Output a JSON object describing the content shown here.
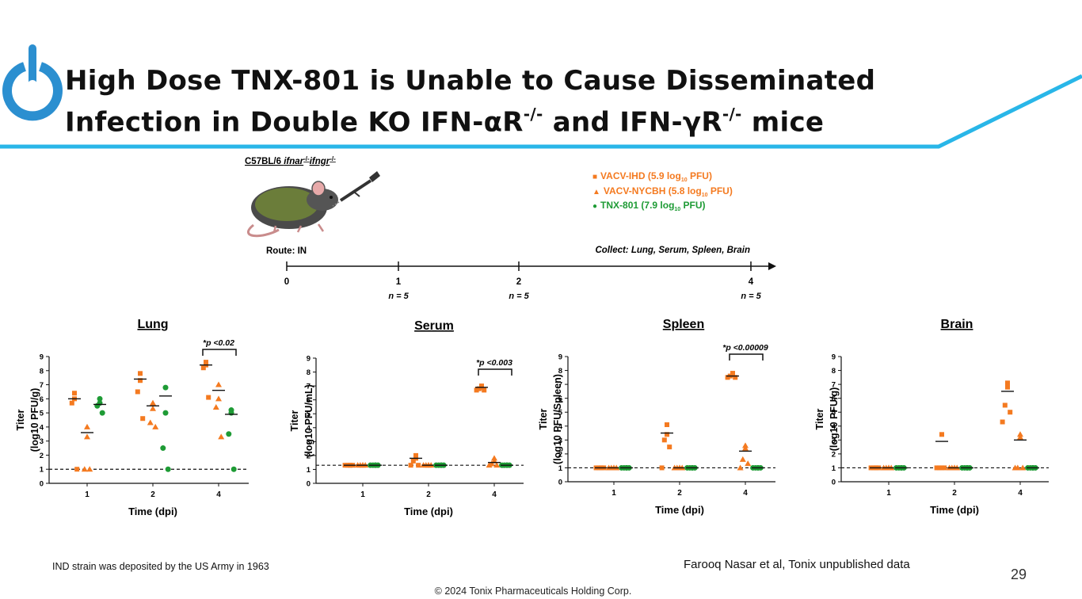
{
  "slide": {
    "title_line1": "High Dose TNX-801 is Unable to Cause Disseminated",
    "title_line2_a": "Infection in Double KO IFN-αR",
    "title_line2_sup1": "-/-",
    "title_line2_b": " and IFN-γR",
    "title_line2_sup2": "-/-",
    "title_line2_c": " mice",
    "logo_icon": "power-icon",
    "accent_color": "#29b6e8",
    "logo_color": "#2b8fd0",
    "footnote": "IND strain was deposited by the US Army in 1963",
    "reference": "Farooq Nasar et al, Tonix unpublished data",
    "page_number": "29",
    "copyright": "© 2024 Tonix Pharmaceuticals Holding Corp."
  },
  "design": {
    "strain_prefix": "C57BL/6 ",
    "strain_italic": "ifnar",
    "strain_sup1": "-/-",
    "strain_italic2": "ifngr",
    "strain_sup2": "-/-",
    "mouse_icon": "mouse-with-dropper-icon",
    "route": "Route: IN",
    "collect": "Collect: Lung, Serum, Spleen, Brain",
    "timeline_ticks": [
      "0",
      "1",
      "2",
      "4"
    ],
    "n_labels": [
      "n = 5",
      "n = 5",
      "n = 5"
    ],
    "legend": [
      {
        "marker": "■",
        "text_a": "VACV-IHD (5.9 log",
        "sub": "10",
        "text_b": " PFU)",
        "color": "#f47a20"
      },
      {
        "marker": "▲",
        "text_a": "VACV-NYCBH (5.8 log",
        "sub": "10",
        "text_b": " PFU)",
        "color": "#f47a20"
      },
      {
        "marker": "●",
        "text_a": "TNX-801 (7.9 log",
        "sub": "10",
        "text_b": " PFU)",
        "color": "#1e9b35"
      }
    ]
  },
  "chart_data": [
    {
      "type": "scatter",
      "title": "Lung",
      "xlabel": "Time (dpi)",
      "ylabel_line1": "Titer",
      "ylabel_line2": "(log10 PFU/g)",
      "categories": [
        "1",
        "2",
        "4"
      ],
      "ylim": [
        0,
        9
      ],
      "yticks": [
        "0",
        "1",
        "2",
        "3",
        "4",
        "5",
        "6",
        "7",
        "8",
        "9"
      ],
      "dashed_line_y": 1,
      "annotation": "*p <0.02",
      "annotation_group": "4",
      "series": [
        {
          "name": "VACV-IHD",
          "marker": "square",
          "color": "#f47a20",
          "points": {
            "1": [
              6.4,
              6.0,
              5.7,
              1.0
            ],
            "2": [
              7.8,
              7.3,
              6.5,
              4.6
            ],
            "4": [
              8.6,
              8.4,
              8.2,
              6.1
            ]
          },
          "means": {
            "1": 6.0,
            "2": 7.4,
            "4": 8.4
          }
        },
        {
          "name": "VACV-NYCBH",
          "marker": "triangle",
          "color": "#f47a20",
          "points": {
            "1": [
              4.0,
              3.3,
              1.0,
              1.0
            ],
            "2": [
              5.7,
              5.3,
              4.3,
              4.0
            ],
            "4": [
              7.0,
              6.0,
              5.4,
              3.3
            ]
          },
          "means": {
            "1": 3.6,
            "2": 5.5,
            "4": 6.6
          }
        },
        {
          "name": "TNX-801",
          "marker": "circle",
          "color": "#1e9b35",
          "points": {
            "1": [
              6.0,
              5.7,
              5.5,
              5.0
            ],
            "2": [
              6.8,
              5.0,
              2.5,
              1.0
            ],
            "4": [
              5.2,
              5.0,
              3.5,
              1.0
            ]
          },
          "means": {
            "1": 5.6,
            "2": 6.2,
            "4": 4.9
          }
        }
      ]
    },
    {
      "type": "scatter",
      "title": "Serum",
      "xlabel": "Time (dpi)",
      "ylabel_line1": "Titer",
      "ylabel_line2": "(log10 PFU/mL)",
      "categories": [
        "1",
        "2",
        "4"
      ],
      "ylim": [
        0,
        9
      ],
      "yticks": [
        "0",
        "1",
        "2",
        "3",
        "4",
        "5",
        "6",
        "7",
        "8",
        "9"
      ],
      "dashed_line_y": 1.3,
      "annotation": "*p <0.003",
      "annotation_group": "4",
      "series": [
        {
          "name": "VACV-IHD",
          "marker": "square",
          "color": "#f47a20",
          "points": {
            "1": [
              1.3,
              1.3,
              1.3,
              1.3,
              1.3
            ],
            "2": [
              2.0,
              1.8,
              1.6,
              1.3,
              1.3
            ],
            "4": [
              7.0,
              6.9,
              6.8,
              6.7,
              6.7
            ]
          },
          "means": {
            "1": 1.3,
            "2": 1.8,
            "4": 6.9
          }
        },
        {
          "name": "VACV-NYCBH",
          "marker": "triangle",
          "color": "#f47a20",
          "points": {
            "1": [
              1.3,
              1.3,
              1.3,
              1.3,
              1.3
            ],
            "2": [
              1.3,
              1.3,
              1.3,
              1.3,
              1.3
            ],
            "4": [
              1.8,
              1.6,
              1.4,
              1.3,
              1.3
            ]
          },
          "means": {
            "1": 1.3,
            "2": 1.3,
            "4": 1.5
          }
        },
        {
          "name": "TNX-801",
          "marker": "circle",
          "color": "#1e9b35",
          "points": {
            "1": [
              1.3,
              1.3,
              1.3,
              1.3,
              1.3
            ],
            "2": [
              1.3,
              1.3,
              1.3,
              1.3,
              1.3
            ],
            "4": [
              1.3,
              1.3,
              1.3,
              1.3,
              1.3
            ]
          },
          "means": {
            "1": 1.3,
            "2": 1.3,
            "4": 1.3
          }
        }
      ]
    },
    {
      "type": "scatter",
      "title": "Spleen",
      "xlabel": "Time (dpi)",
      "ylabel_line1": "Titer",
      "ylabel_line2": "(log10 PFU/Spleen)",
      "categories": [
        "1",
        "2",
        "4"
      ],
      "ylim": [
        0,
        9
      ],
      "yticks": [
        "0",
        "1",
        "2",
        "3",
        "4",
        "5",
        "6",
        "7",
        "8",
        "9"
      ],
      "dashed_line_y": 1,
      "annotation": "*p <0.00009",
      "annotation_group": "4",
      "series": [
        {
          "name": "VACV-IHD",
          "marker": "square",
          "color": "#f47a20",
          "points": {
            "1": [
              1.0,
              1.0,
              1.0,
              1.0,
              1.0
            ],
            "2": [
              4.1,
              3.4,
              3.0,
              2.5,
              1.0
            ],
            "4": [
              7.8,
              7.7,
              7.6,
              7.5,
              7.5
            ]
          },
          "means": {
            "1": 1.0,
            "2": 3.5,
            "4": 7.6
          }
        },
        {
          "name": "VACV-NYCBH",
          "marker": "triangle",
          "color": "#f47a20",
          "points": {
            "1": [
              1.0,
              1.0,
              1.0,
              1.0,
              1.0
            ],
            "2": [
              1.0,
              1.0,
              1.0,
              1.0,
              1.0
            ],
            "4": [
              2.6,
              2.4,
              1.6,
              1.3,
              1.0
            ]
          },
          "means": {
            "1": 1.0,
            "2": 1.0,
            "4": 2.2
          }
        },
        {
          "name": "TNX-801",
          "marker": "circle",
          "color": "#1e9b35",
          "points": {
            "1": [
              1.0,
              1.0,
              1.0,
              1.0,
              1.0
            ],
            "2": [
              1.0,
              1.0,
              1.0,
              1.0,
              1.0
            ],
            "4": [
              1.0,
              1.0,
              1.0,
              1.0,
              1.0
            ]
          },
          "means": {
            "1": 1.0,
            "2": 1.0,
            "4": 1.0
          }
        }
      ]
    },
    {
      "type": "scatter",
      "title": "Brain",
      "xlabel": "Time (dpi)",
      "ylabel_line1": "Titer",
      "ylabel_line2": "(log10 PFU/g)",
      "categories": [
        "1",
        "2",
        "4"
      ],
      "ylim": [
        0,
        9
      ],
      "yticks": [
        "0",
        "1",
        "2",
        "3",
        "4",
        "5",
        "6",
        "7",
        "8",
        "9"
      ],
      "dashed_line_y": 1,
      "annotation": "",
      "annotation_group": "",
      "series": [
        {
          "name": "VACV-IHD",
          "marker": "square",
          "color": "#f47a20",
          "points": {
            "1": [
              1.0,
              1.0,
              1.0,
              1.0,
              1.0
            ],
            "2": [
              3.4,
              1.0,
              1.0,
              1.0,
              1.0
            ],
            "4": [
              7.1,
              6.8,
              5.5,
              5.0,
              4.3
            ]
          },
          "means": {
            "1": 1.0,
            "2": 2.9,
            "4": 6.5
          }
        },
        {
          "name": "VACV-NYCBH",
          "marker": "triangle",
          "color": "#f47a20",
          "points": {
            "1": [
              1.0,
              1.0,
              1.0,
              1.0,
              1.0
            ],
            "2": [
              1.0,
              1.0,
              1.0,
              1.0,
              1.0
            ],
            "4": [
              3.4,
              3.2,
              1.0,
              1.0,
              1.0
            ]
          },
          "means": {
            "1": 1.0,
            "2": 1.0,
            "4": 3.0
          }
        },
        {
          "name": "TNX-801",
          "marker": "circle",
          "color": "#1e9b35",
          "points": {
            "1": [
              1.0,
              1.0,
              1.0,
              1.0,
              1.0
            ],
            "2": [
              1.0,
              1.0,
              1.0,
              1.0,
              1.0
            ],
            "4": [
              1.0,
              1.0,
              1.0,
              1.0,
              1.0
            ]
          },
          "means": {
            "1": 1.0,
            "2": 1.0,
            "4": 1.0
          }
        }
      ]
    }
  ]
}
